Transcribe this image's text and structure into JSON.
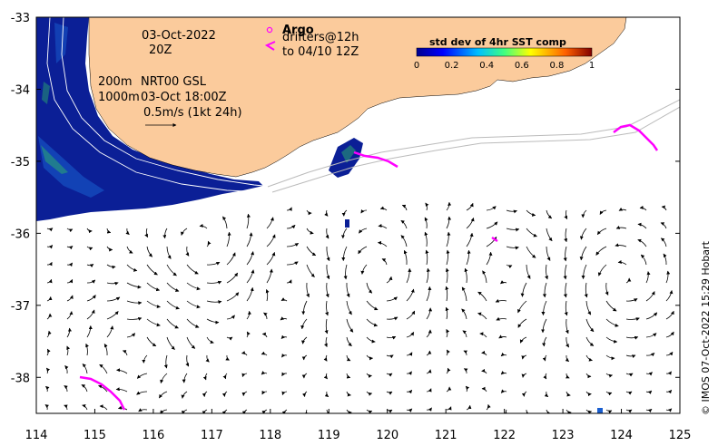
{
  "map": {
    "lon_ticks": [
      "114",
      "115",
      "116",
      "117",
      "118",
      "119",
      "120",
      "121",
      "122",
      "123",
      "124",
      "125"
    ],
    "lat_ticks": [
      "-33",
      "-34",
      "-35",
      "-36",
      "-37",
      "-38"
    ],
    "lon_range": [
      114,
      125
    ],
    "lat_range": [
      -38.5,
      -33
    ]
  },
  "annotations": {
    "date": "03-Oct-2022",
    "hour": "20Z",
    "isobath_200": "200m",
    "isobath_1000": "1000m",
    "source": "NRT00 GSL",
    "source_time": "03-Oct 18:00Z",
    "scale_label": "0.5m/s (1kt 24h)"
  },
  "legend": {
    "argo_title": "Argo",
    "drifters_line1": "drifters@12h",
    "drifters_line2": "to 04/10 12Z",
    "argo_marker_color": "#ff00ff"
  },
  "colorbar": {
    "title": "std dev of 4hr SST comp",
    "ticks": [
      "0",
      "0.2",
      "0.4",
      "0.6",
      "0.8",
      "1"
    ]
  },
  "credit": "© IMOS 07-Oct-2022 15:29 Hobart",
  "colors": {
    "land": "#fbcb9c",
    "sst_low": "#0a1a8c",
    "drifter": "#ff00ff"
  }
}
